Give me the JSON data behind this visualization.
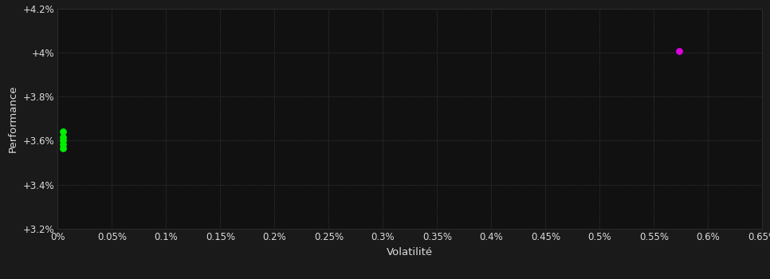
{
  "background_color": "#1a1a1a",
  "plot_bg_color": "#111111",
  "grid_color": "#444444",
  "text_color": "#dddddd",
  "xlabel": "Volatilité",
  "ylabel": "Performance",
  "xlim": [
    0.0,
    0.0065
  ],
  "ylim": [
    0.032,
    0.042
  ],
  "xticks": [
    0.0,
    0.0005,
    0.001,
    0.0015,
    0.002,
    0.0025,
    0.003,
    0.0035,
    0.004,
    0.0045,
    0.005,
    0.0055,
    0.006,
    0.0065
  ],
  "xtick_labels": [
    "0%",
    "0.05%",
    "0.1%",
    "0.15%",
    "0.2%",
    "0.25%",
    "0.3%",
    "0.35%",
    "0.4%",
    "0.45%",
    "0.5%",
    "0.55%",
    "0.6%",
    "0.65%"
  ],
  "yticks": [
    0.032,
    0.034,
    0.036,
    0.038,
    0.04,
    0.042
  ],
  "ytick_labels": [
    "+3.2%",
    "+3.4%",
    "+3.6%",
    "+3.8%",
    "+4%",
    "+4.2%"
  ],
  "green_points_x": [
    5e-05,
    5e-05,
    5e-05,
    5e-05,
    5e-05
  ],
  "green_points_y": [
    0.0364,
    0.03615,
    0.036,
    0.03582,
    0.03565
  ],
  "magenta_point_x": [
    0.00573
  ],
  "magenta_point_y": [
    0.04005
  ],
  "green_color": "#00ee00",
  "magenta_color": "#dd00dd",
  "point_size": 28,
  "font_size": 8.5,
  "label_font_size": 9.5
}
